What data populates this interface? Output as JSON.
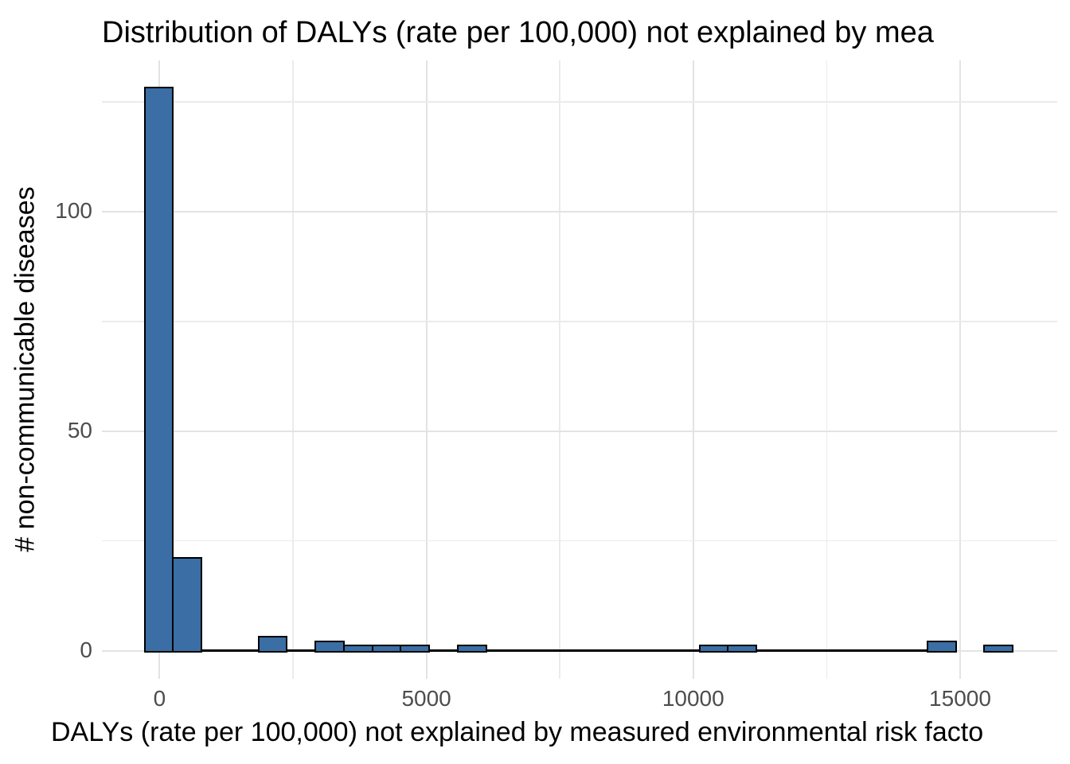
{
  "chart_data": {
    "type": "bar",
    "subtype": "histogram",
    "title": "Distribution of DALYs (rate per 100,000) not explained by mea",
    "xlabel": "DALYs (rate per 100,000) not explained by measured environmental risk facto",
    "ylabel": "# non-communicable diseases",
    "bin_width": 533.33,
    "bins": [
      {
        "center": 0,
        "count": 128
      },
      {
        "center": 533.33,
        "count": 21
      },
      {
        "center": 2133.33,
        "count": 3
      },
      {
        "center": 3200,
        "count": 2
      },
      {
        "center": 3733.33,
        "count": 1
      },
      {
        "center": 4266.67,
        "count": 1
      },
      {
        "center": 4800,
        "count": 1
      },
      {
        "center": 5866.67,
        "count": 1
      },
      {
        "center": 10400,
        "count": 1
      },
      {
        "center": 10933.33,
        "count": 1
      },
      {
        "center": 14666.67,
        "count": 2
      },
      {
        "center": 15733.33,
        "count": 1
      }
    ],
    "zero_baseline_segments": [
      [
        -266.67,
        14933.33
      ],
      [
        15466.67,
        16000
      ]
    ],
    "xlim": [
      -1080,
      16820
    ],
    "ylim": [
      -6.4,
      134.4
    ],
    "x_major_ticks": [
      0,
      5000,
      10000,
      15000
    ],
    "x_tick_labels": [
      "0",
      "5000",
      "10000",
      "15000"
    ],
    "x_minor_ticks": [
      2500,
      7500,
      12500
    ],
    "y_major_ticks": [
      0,
      50,
      100
    ],
    "y_tick_labels": [
      "0",
      "50",
      "100"
    ],
    "y_minor_ticks": [
      25,
      75,
      125
    ],
    "grid": true,
    "legend": "none",
    "colors": {
      "bar_fill": "#3A6EA5",
      "bar_stroke": "#000000",
      "grid_major": "#E3E3E3",
      "grid_minor": "#EBEBEB",
      "tick_label": "#4D4D4D",
      "text": "#000000",
      "background": "#FFFFFF"
    }
  }
}
